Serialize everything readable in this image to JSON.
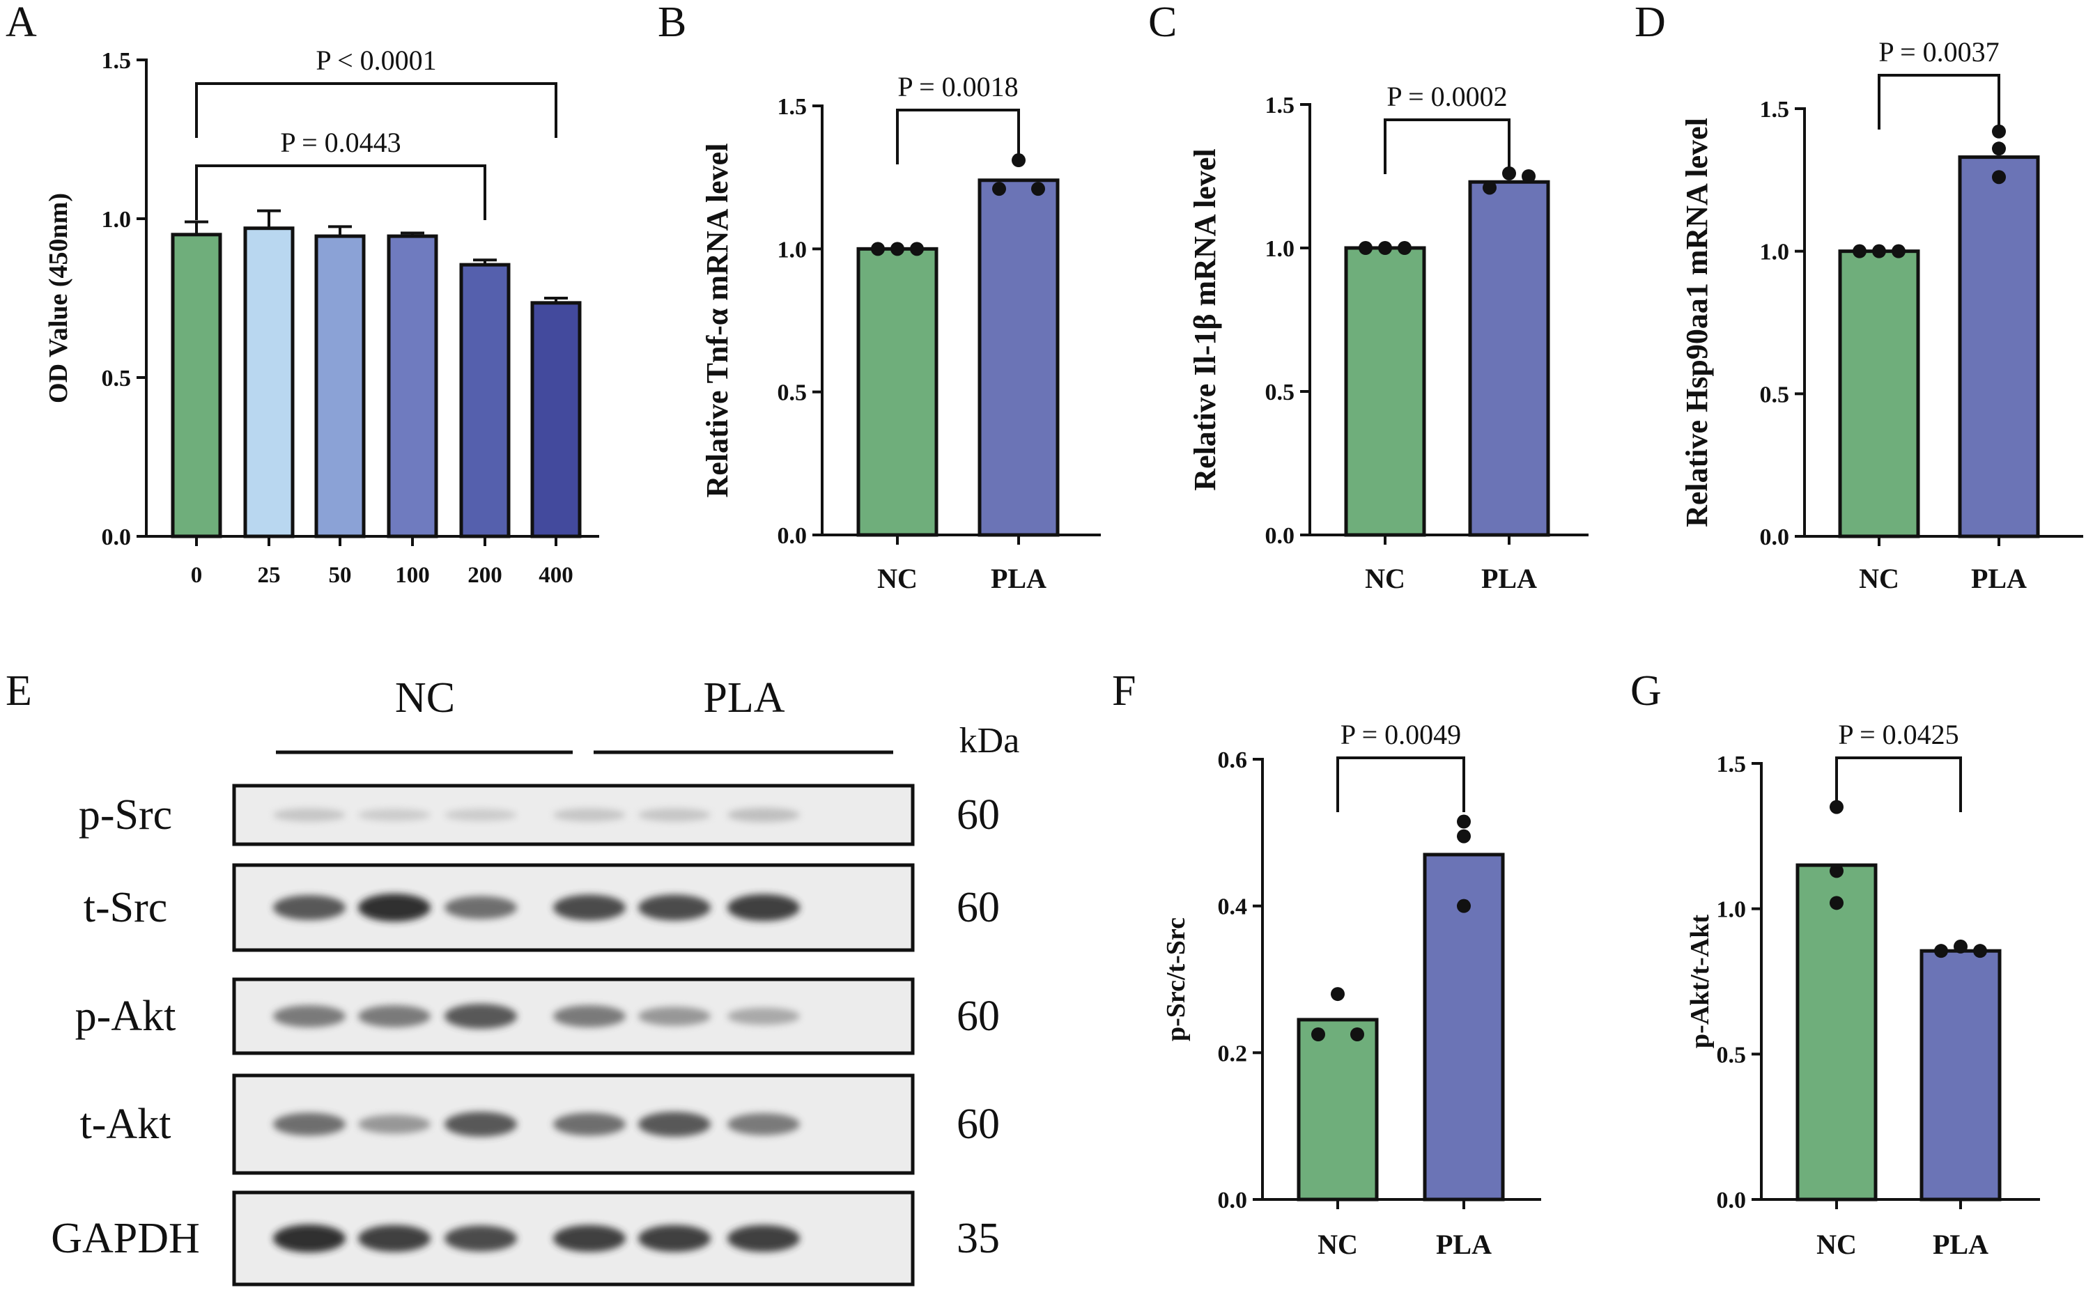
{
  "colors": {
    "green": "#6fae7b",
    "light_blue": "#b9d7f0",
    "periwinkle": "#8ba2d6",
    "mid_blue": "#6f7bbf",
    "dark_blue": "#5560ad",
    "navy": "#434a9d",
    "pla": "#6b74b6"
  },
  "chart_data": [
    {
      "panel": "A",
      "type": "bar",
      "categories": [
        "0",
        "25",
        "50",
        "100",
        "200",
        "400"
      ],
      "values": [
        0.95,
        0.97,
        0.945,
        0.945,
        0.855,
        0.735
      ],
      "errors": [
        0.04,
        0.055,
        0.03,
        0.01,
        0.015,
        0.015
      ],
      "ylabel": "OD Value (450nm)",
      "ylim": [
        0,
        1.5
      ],
      "yticks": [
        "0.0",
        "0.5",
        "1.0",
        "1.5"
      ],
      "comparisons": [
        {
          "from": 0,
          "to": 5,
          "label": "P < 0.0001"
        },
        {
          "from": 0,
          "to": 4,
          "label": "P = 0.0443"
        }
      ]
    },
    {
      "panel": "B",
      "type": "bar",
      "categories": [
        "NC",
        "PLA"
      ],
      "values": [
        1.0,
        1.24
      ],
      "points": [
        [
          1.0,
          1.0,
          1.0
        ],
        [
          1.21,
          1.31,
          1.21
        ]
      ],
      "ylabel": "Relative Tnf-α mRNA level",
      "ylim": [
        0,
        1.5
      ],
      "yticks": [
        "0.0",
        "0.5",
        "1.0",
        "1.5"
      ],
      "comparisons": [
        {
          "from": 0,
          "to": 1,
          "label": "P = 0.0018"
        }
      ]
    },
    {
      "panel": "C",
      "type": "bar",
      "categories": [
        "NC",
        "PLA"
      ],
      "values": [
        1.0,
        1.23
      ],
      "points": [
        [
          1.0,
          1.0,
          1.0
        ],
        [
          1.21,
          1.26,
          1.25
        ]
      ],
      "ylabel": "Relative Il-1β mRNA level",
      "ylim": [
        0,
        1.5
      ],
      "yticks": [
        "0.0",
        "0.5",
        "1.0",
        "1.5"
      ],
      "comparisons": [
        {
          "from": 0,
          "to": 1,
          "label": "P = 0.0002"
        }
      ]
    },
    {
      "panel": "D",
      "type": "bar",
      "categories": [
        "NC",
        "PLA"
      ],
      "values": [
        1.0,
        1.33
      ],
      "points": [
        [
          1.0,
          1.0,
          1.0
        ],
        [
          1.26,
          1.42,
          1.36
        ]
      ],
      "ylabel": "Relative Hsp90aa1 mRNA level",
      "ylim": [
        0,
        1.5
      ],
      "yticks": [
        "0.0",
        "0.5",
        "1.0",
        "1.5"
      ],
      "comparisons": [
        {
          "from": 0,
          "to": 1,
          "label": "P = 0.0037"
        }
      ]
    },
    {
      "panel": "F",
      "type": "bar",
      "categories": [
        "NC",
        "PLA"
      ],
      "values": [
        0.245,
        0.47
      ],
      "points": [
        [
          0.225,
          0.28,
          0.225
        ],
        [
          0.4,
          0.515,
          0.495
        ]
      ],
      "ylabel": "p-Src/t-Src",
      "ylim": [
        0,
        0.6
      ],
      "yticks": [
        "0.0",
        "0.2",
        "0.4",
        "0.6"
      ],
      "comparisons": [
        {
          "from": 0,
          "to": 1,
          "label": "P = 0.0049"
        }
      ]
    },
    {
      "panel": "G",
      "type": "bar",
      "categories": [
        "NC",
        "PLA"
      ],
      "values": [
        1.15,
        0.855
      ],
      "points": [
        [
          1.02,
          1.35,
          1.13
        ],
        [
          0.855,
          0.87,
          0.855
        ]
      ],
      "ylabel": "p-Akt/t-Akt",
      "ylim": [
        0,
        1.5
      ],
      "yticks": [
        "0.0",
        "0.5",
        "1.0",
        "1.5"
      ],
      "comparisons": [
        {
          "from": 0,
          "to": 1,
          "label": "P = 0.0425"
        }
      ]
    }
  ],
  "western_blot": {
    "panel": "E",
    "groups": [
      "NC",
      "PLA"
    ],
    "unit_label": "kDa",
    "lanes_per_group": 3,
    "bands": [
      {
        "protein": "p-Src",
        "kda": "60",
        "intensities": [
          0.25,
          0.2,
          0.2,
          0.25,
          0.25,
          0.3
        ]
      },
      {
        "protein": "t-Src",
        "kda": "60",
        "intensities": [
          0.85,
          1.0,
          0.75,
          0.9,
          0.9,
          0.95
        ]
      },
      {
        "protein": "p-Akt",
        "kda": "60",
        "intensities": [
          0.7,
          0.7,
          0.85,
          0.7,
          0.55,
          0.45
        ]
      },
      {
        "protein": "t-Akt",
        "kda": "60",
        "intensities": [
          0.75,
          0.55,
          0.85,
          0.75,
          0.85,
          0.7
        ]
      },
      {
        "protein": "GAPDH",
        "kda": "35",
        "intensities": [
          1.0,
          0.95,
          0.9,
          0.95,
          0.95,
          0.95
        ]
      }
    ]
  }
}
